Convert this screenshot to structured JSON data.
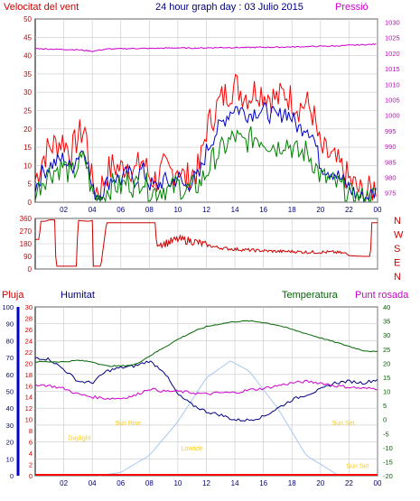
{
  "header": {
    "left_title": "Velocitat del vent",
    "center_title": "24 hour graph day : 03 Julio 2015",
    "right_title": "Pressió"
  },
  "colors": {
    "gust": "#ff0000",
    "wind": "#0000cc",
    "wind_avg": "#008000",
    "pressure": "#cc00cc",
    "direction": "#cc0000",
    "humidity": "#000080",
    "temperature": "#006400",
    "dewpoint": "#cc00cc",
    "solar": "#a8c8f0",
    "rain": "#ff0000",
    "day": "#ffcc00",
    "grid": "#c8c8c8"
  },
  "x_ticks": [
    "02",
    "04",
    "06",
    "08",
    "10",
    "12",
    "14",
    "16",
    "18",
    "20",
    "22",
    "00"
  ],
  "chart_data": [
    {
      "type": "line",
      "name": "wind-pressure",
      "left_ylim": [
        0,
        50
      ],
      "left_ticks": [
        0,
        5,
        10,
        15,
        20,
        25,
        30,
        35,
        40,
        45,
        50
      ],
      "right_ylim": [
        972,
        1031
      ],
      "right_ticks": [
        975,
        980,
        985,
        990,
        995,
        1000,
        1005,
        1010,
        1015,
        1020,
        1025,
        1030
      ],
      "series": [
        {
          "key": "gust",
          "x": [
            0,
            0.5,
            1,
            1.5,
            2,
            2.5,
            3,
            3.5,
            4,
            4.5,
            5,
            5.5,
            6,
            6.5,
            7,
            7.5,
            8,
            8.5,
            9,
            9.5,
            10,
            10.5,
            11,
            11.5,
            12,
            12.5,
            13,
            13.5,
            14,
            14.5,
            15,
            15.5,
            16,
            16.5,
            17,
            17.5,
            18,
            18.5,
            19,
            19.5,
            20,
            20.5,
            21,
            21.5,
            22,
            22.5,
            23,
            23.5,
            24
          ],
          "values": [
            6,
            12,
            15,
            16,
            17,
            13,
            18,
            20,
            5,
            3,
            8,
            10,
            9,
            11,
            8,
            12,
            7,
            6,
            9,
            8,
            10,
            6,
            8,
            9,
            20,
            24,
            28,
            30,
            32,
            30,
            29,
            31,
            30,
            29,
            28,
            30,
            28,
            26,
            27,
            24,
            14,
            13,
            11,
            9,
            6,
            4,
            2,
            3,
            5
          ]
        },
        {
          "key": "wind",
          "x": [
            0,
            0.5,
            1,
            1.5,
            2,
            2.5,
            3,
            3.5,
            4,
            4.5,
            5,
            5.5,
            6,
            6.5,
            7,
            7.5,
            8,
            8.5,
            9,
            9.5,
            10,
            10.5,
            11,
            11.5,
            12,
            12.5,
            13,
            13.5,
            14,
            14.5,
            15,
            15.5,
            16,
            16.5,
            17,
            17.5,
            18,
            18.5,
            19,
            19.5,
            20,
            20.5,
            21,
            21.5,
            22,
            22.5,
            23,
            23.5,
            24
          ],
          "values": [
            4,
            8,
            10,
            11,
            12,
            9,
            13,
            15,
            3,
            2,
            5,
            7,
            6,
            8,
            6,
            9,
            5,
            4,
            6,
            5,
            7,
            4,
            6,
            7,
            14,
            18,
            21,
            24,
            26,
            25,
            24,
            25,
            25,
            24,
            23,
            25,
            23,
            20,
            21,
            18,
            10,
            9,
            8,
            6,
            4,
            2,
            1,
            2,
            3
          ]
        },
        {
          "key": "wind_avg",
          "x": [
            0,
            0.5,
            1,
            1.5,
            2,
            2.5,
            3,
            3.5,
            4,
            4.5,
            5,
            5.5,
            6,
            6.5,
            7,
            7.5,
            8,
            8.5,
            9,
            9.5,
            10,
            10.5,
            11,
            11.5,
            12,
            12.5,
            13,
            13.5,
            14,
            14.5,
            15,
            15.5,
            16,
            16.5,
            17,
            17.5,
            18,
            18.5,
            19,
            19.5,
            20,
            20.5,
            21,
            21.5,
            22,
            22.5,
            23,
            23.5,
            24
          ],
          "values": [
            2,
            6,
            8,
            9,
            10,
            7,
            10,
            12,
            2,
            1,
            3,
            5,
            4,
            6,
            4,
            7,
            3,
            3,
            4,
            3,
            5,
            3,
            4,
            5,
            8,
            12,
            14,
            16,
            18,
            16,
            17,
            18,
            17,
            16,
            15,
            17,
            15,
            13,
            14,
            11,
            7,
            6,
            5,
            4,
            2,
            1,
            1,
            1,
            2
          ]
        },
        {
          "key": "pressure",
          "x": [
            0,
            1,
            2,
            3,
            4,
            5,
            6,
            7,
            8,
            9,
            10,
            11,
            12,
            13,
            14,
            15,
            16,
            17,
            18,
            19,
            20,
            21,
            22,
            23,
            24
          ],
          "values": [
            1021.5,
            1021.3,
            1021.2,
            1021.1,
            1020.6,
            1021.3,
            1021.4,
            1021.5,
            1021.5,
            1021.6,
            1021.7,
            1021.6,
            1021.7,
            1021.8,
            1021.8,
            1021.8,
            1021.9,
            1021.9,
            1022.0,
            1022.1,
            1022.2,
            1022.3,
            1022.5,
            1022.7,
            1022.9
          ]
        }
      ]
    },
    {
      "type": "line",
      "name": "wind-direction",
      "ylim": [
        0,
        360
      ],
      "left_ticks": [
        0,
        90,
        180,
        270,
        360
      ],
      "right_labels": [
        "N",
        "W",
        "S",
        "E",
        "N"
      ],
      "x": [
        0,
        0.3,
        0.35,
        0.7,
        1,
        1.4,
        1.45,
        2.9,
        3,
        3.05,
        3.7,
        4,
        4.05,
        4.6,
        5,
        6,
        7,
        8,
        8.4,
        8.5,
        9,
        10,
        11,
        12,
        13,
        14,
        15,
        16,
        17,
        18,
        19,
        20,
        21,
        21.8,
        22,
        23,
        23.5,
        23.6,
        24
      ],
      "values": [
        210,
        210,
        340,
        340,
        350,
        350,
        20,
        20,
        350,
        345,
        340,
        345,
        20,
        20,
        330,
        330,
        330,
        330,
        330,
        190,
        180,
        210,
        200,
        170,
        150,
        140,
        135,
        130,
        125,
        125,
        120,
        120,
        120,
        110,
        95,
        90,
        90,
        330,
        330
      ]
    },
    {
      "type": "line",
      "name": "humidity-temperature",
      "legend": [
        "Pluja",
        "Humitat",
        "Temperatura",
        "Punt rosada"
      ],
      "humidity_ylim": [
        0,
        100
      ],
      "humidity_ticks": [
        0,
        10,
        20,
        30,
        40,
        50,
        60,
        70,
        80,
        90,
        100
      ],
      "rain_ylim": [
        0,
        30
      ],
      "rain_ticks": [
        0,
        2,
        4,
        6,
        8,
        10,
        12,
        14,
        16,
        18,
        20,
        22,
        24,
        26,
        28,
        30
      ],
      "temp_ylim": [
        -20,
        40
      ],
      "temp_ticks": [
        -20,
        -15,
        -10,
        -5,
        0,
        5,
        10,
        15,
        20,
        25,
        30,
        35,
        40
      ],
      "series": [
        {
          "key": "humidity",
          "x": [
            0,
            1,
            2,
            3,
            4,
            5,
            6,
            7,
            8,
            9,
            10,
            11,
            12,
            13,
            14,
            15,
            16,
            17,
            18,
            19,
            20,
            21,
            22,
            23,
            24
          ],
          "values": [
            70,
            69,
            63,
            56,
            55,
            62,
            64,
            65,
            68,
            62,
            48,
            42,
            38,
            36,
            33,
            33,
            35,
            40,
            45,
            48,
            51,
            55,
            56,
            55,
            57
          ]
        },
        {
          "key": "temperature",
          "x": [
            0,
            1,
            2,
            3,
            4,
            5,
            6,
            7,
            8,
            9,
            10,
            11,
            12,
            13,
            14,
            15,
            16,
            17,
            18,
            19,
            20,
            21,
            22,
            23,
            24
          ],
          "values": [
            20.5,
            20.5,
            20.5,
            21,
            20.5,
            19,
            19,
            19.5,
            22.5,
            25.5,
            28.5,
            31,
            33,
            34,
            34.8,
            35,
            34.5,
            33.5,
            32,
            30.5,
            29,
            27.5,
            26,
            24.5,
            24
          ]
        },
        {
          "key": "dewpoint",
          "x": [
            0,
            1,
            2,
            3,
            4,
            5,
            6,
            7,
            8,
            9,
            10,
            11,
            12,
            13,
            14,
            15,
            16,
            17,
            18,
            19,
            20,
            21,
            22,
            23,
            24
          ],
          "values": [
            12.5,
            12,
            11,
            9,
            8,
            7.5,
            7.5,
            8.5,
            11,
            10,
            10,
            9.5,
            9,
            9.5,
            9.5,
            10.5,
            11,
            12,
            13,
            13.5,
            13,
            12,
            11.5,
            11,
            11
          ]
        },
        {
          "key": "solar",
          "x": [
            4.5,
            6,
            8,
            10,
            12,
            13.7,
            15,
            17,
            19,
            21.3
          ],
          "values": [
            0,
            2,
            12,
            32,
            58,
            68,
            62,
            40,
            12,
            0
          ]
        }
      ],
      "annotations": [
        {
          "text": "Daylight",
          "hour": 3.1,
          "value": 21
        },
        {
          "text": "Sun Rise",
          "hour": 6.5,
          "value": 30
        },
        {
          "text": "Lowtide",
          "hour": 11.0,
          "value": 15
        },
        {
          "text": "Sun Set",
          "hour": 21.6,
          "value": 30
        },
        {
          "text": "Sun Set",
          "hour": 22.6,
          "value": 4.5
        }
      ]
    }
  ]
}
